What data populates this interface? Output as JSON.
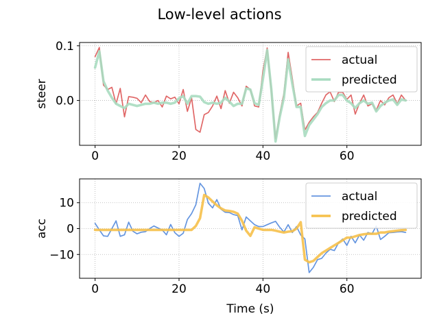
{
  "figure": {
    "title": "Low-level actions"
  },
  "chart_data": [
    {
      "type": "line",
      "ylabel": "steer",
      "xlabel": "",
      "xlim": [
        -3.7,
        77.7
      ],
      "ylim": [
        -0.082,
        0.106
      ],
      "xticks": [
        0,
        20,
        40,
        60
      ],
      "yticks": [
        0.1,
        0.0
      ],
      "ytick_labels": [
        "0.1",
        "0.0"
      ],
      "grid": true,
      "legend_position": "top-right",
      "series": [
        {
          "name": "actual",
          "color": "#e06666",
          "x": [
            0,
            1,
            2,
            3,
            4,
            5,
            6,
            7,
            8,
            9,
            10,
            11,
            12,
            13,
            14,
            15,
            16,
            17,
            18,
            19,
            20,
            21,
            22,
            23,
            24,
            25,
            26,
            27,
            28,
            29,
            30,
            31,
            32,
            33,
            34,
            35,
            36,
            37,
            38,
            39,
            40,
            41,
            42,
            43,
            44,
            45,
            46,
            47,
            48,
            49,
            50,
            51,
            52,
            53,
            54,
            55,
            56,
            57,
            58,
            59,
            60,
            61,
            62,
            63,
            64,
            65,
            66,
            67,
            68,
            69,
            70,
            71,
            72,
            73,
            74
          ],
          "y": [
            0.08,
            0.097,
            0.028,
            0.02,
            0.024,
            -0.006,
            0.022,
            -0.03,
            0.007,
            0.006,
            0.004,
            -0.004,
            0.01,
            -0.002,
            -0.004,
            0.0,
            -0.012,
            0.008,
            0.003,
            0.006,
            -0.006,
            0.02,
            -0.02,
            0.005,
            -0.053,
            -0.058,
            -0.026,
            -0.022,
            -0.01,
            0.008,
            -0.015,
            0.018,
            -0.005,
            0.015,
            0.005,
            -0.01,
            0.026,
            0.02,
            -0.01,
            -0.012,
            0.055,
            0.096,
            0.015,
            -0.07,
            -0.025,
            0.013,
            0.088,
            0.04,
            -0.01,
            -0.005,
            -0.054,
            -0.04,
            -0.03,
            -0.022,
            -0.005,
            0.01,
            0.016,
            -0.002,
            0.015,
            0.015,
            0.002,
            0.01,
            -0.025,
            -0.005,
            0.01,
            -0.01,
            -0.006,
            -0.018,
            0.0,
            -0.008,
            0.005,
            0.01,
            -0.006,
            0.01,
            0.0
          ]
        },
        {
          "name": "predicted",
          "color": "#a8dcc0",
          "x": [
            0,
            1,
            2,
            3,
            4,
            5,
            6,
            7,
            8,
            9,
            10,
            11,
            12,
            13,
            14,
            15,
            16,
            17,
            18,
            19,
            20,
            21,
            22,
            23,
            24,
            25,
            26,
            27,
            28,
            29,
            30,
            31,
            32,
            33,
            34,
            35,
            36,
            37,
            38,
            39,
            40,
            41,
            42,
            43,
            44,
            45,
            46,
            47,
            48,
            49,
            50,
            51,
            52,
            53,
            54,
            55,
            56,
            57,
            58,
            59,
            60,
            61,
            62,
            63,
            64,
            65,
            66,
            67,
            68,
            69,
            70,
            71,
            72,
            73,
            74
          ],
          "y": [
            0.06,
            0.09,
            0.035,
            0.018,
            0.005,
            -0.006,
            -0.01,
            -0.014,
            -0.006,
            -0.008,
            -0.01,
            -0.008,
            -0.006,
            -0.006,
            -0.004,
            -0.006,
            -0.004,
            -0.004,
            -0.006,
            -0.004,
            0.004,
            0.008,
            -0.006,
            0.008,
            0.008,
            0.007,
            -0.003,
            -0.006,
            -0.004,
            -0.006,
            -0.004,
            0.005,
            -0.002,
            -0.01,
            -0.006,
            -0.006,
            0.022,
            0.02,
            -0.005,
            -0.008,
            0.04,
            0.092,
            0.02,
            -0.075,
            -0.03,
            0.005,
            0.075,
            0.03,
            -0.012,
            -0.012,
            -0.065,
            -0.045,
            -0.035,
            -0.025,
            -0.012,
            -0.005,
            0.0,
            0.0,
            0.01,
            0.01,
            0.0,
            -0.005,
            -0.014,
            -0.005,
            0.0,
            -0.006,
            -0.004,
            -0.02,
            -0.01,
            -0.004,
            0.0,
            0.002,
            -0.008,
            0.002,
            0.0
          ]
        }
      ]
    },
    {
      "type": "line",
      "ylabel": "acc",
      "xlabel": "Time (s)",
      "xlim": [
        -3.7,
        77.7
      ],
      "ylim": [
        -19.2,
        19.2
      ],
      "xticks": [
        0,
        20,
        40,
        60
      ],
      "yticks": [
        10,
        0,
        -10
      ],
      "ytick_labels": [
        "10",
        "0",
        "−10"
      ],
      "grid": true,
      "legend_position": "top-right",
      "series": [
        {
          "name": "actual",
          "color": "#6495e0",
          "x": [
            0,
            1,
            2,
            3,
            4,
            5,
            6,
            7,
            8,
            9,
            10,
            11,
            12,
            13,
            14,
            15,
            16,
            17,
            18,
            19,
            20,
            21,
            22,
            23,
            24,
            25,
            26,
            27,
            28,
            29,
            30,
            31,
            32,
            33,
            34,
            35,
            36,
            37,
            38,
            39,
            40,
            41,
            42,
            43,
            44,
            45,
            46,
            47,
            48,
            49,
            50,
            51,
            52,
            53,
            54,
            55,
            56,
            57,
            58,
            59,
            60,
            61,
            62,
            63,
            64,
            65,
            66,
            67,
            68,
            69,
            70,
            71,
            72,
            73,
            74
          ],
          "y": [
            2.0,
            -0.5,
            -2.8,
            -3.0,
            0.0,
            3.0,
            -3.0,
            -2.4,
            2.5,
            -1.0,
            -2.0,
            -1.4,
            -1.2,
            0.0,
            1.0,
            0.2,
            -0.5,
            -2.4,
            1.6,
            -1.6,
            -3.0,
            -1.8,
            3.5,
            5.8,
            9.2,
            17.5,
            15.5,
            9.8,
            8.0,
            11.2,
            7.5,
            6.3,
            6.2,
            5.4,
            5.0,
            -0.5,
            4.5,
            3.0,
            1.5,
            0.8,
            0.8,
            1.5,
            2.2,
            2.8,
            0.5,
            -1.3,
            1.5,
            -1.5,
            0.8,
            -2.5,
            -4.0,
            -17.0,
            -15.0,
            -12.0,
            -11.5,
            -9.5,
            -8.0,
            -8.5,
            -5.5,
            -4.0,
            -6.5,
            -3.0,
            -5.5,
            -2.5,
            -4.5,
            -1.5,
            -2.0,
            1.0,
            -4.2,
            -3.0,
            -1.6,
            -1.5,
            -1.3,
            -1.2,
            -1.5
          ]
        },
        {
          "name": "predicted",
          "color": "#f6c04a",
          "x": [
            0,
            1,
            2,
            3,
            4,
            5,
            6,
            7,
            8,
            9,
            10,
            11,
            12,
            13,
            14,
            15,
            16,
            17,
            18,
            19,
            20,
            21,
            22,
            23,
            24,
            25,
            26,
            27,
            28,
            29,
            30,
            31,
            32,
            33,
            34,
            35,
            36,
            37,
            38,
            39,
            40,
            41,
            42,
            43,
            44,
            45,
            46,
            47,
            48,
            49,
            50,
            51,
            52,
            53,
            54,
            55,
            56,
            57,
            58,
            59,
            60,
            61,
            62,
            63,
            64,
            65,
            66,
            67,
            68,
            69,
            70,
            71,
            72,
            73,
            74
          ],
          "y": [
            -0.5,
            -0.5,
            -0.5,
            -0.5,
            -0.5,
            -0.5,
            -0.5,
            -0.5,
            -0.5,
            -0.5,
            -0.5,
            -0.5,
            -0.5,
            -0.5,
            -0.5,
            -0.5,
            -0.5,
            -0.5,
            -0.5,
            -0.5,
            -0.5,
            -0.5,
            -0.5,
            -0.5,
            1.0,
            4.0,
            13.0,
            12.0,
            10.5,
            9.0,
            7.8,
            7.0,
            6.8,
            6.5,
            5.8,
            3.0,
            -0.8,
            -2.8,
            0.5,
            0.0,
            -0.5,
            -0.5,
            -0.5,
            -0.8,
            -1.2,
            -1.5,
            -1.2,
            -1.0,
            0.0,
            2.5,
            -12.0,
            -13.0,
            -12.5,
            -11.0,
            -9.5,
            -8.5,
            -7.5,
            -6.5,
            -5.5,
            -4.5,
            -3.5,
            -3.5,
            -3.0,
            -2.5,
            -2.2,
            -2.0,
            -2.0,
            -2.0,
            -1.5,
            -1.5,
            -1.2,
            -1.0,
            -0.8,
            -0.6,
            -0.5
          ]
        }
      ]
    }
  ]
}
